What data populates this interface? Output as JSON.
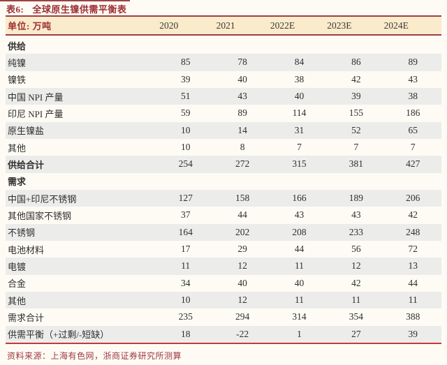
{
  "header": {
    "table_label": "表6:",
    "title": "全球原生镍供需平衡表"
  },
  "table": {
    "unit_label": "单位: 万吨",
    "columns": [
      "2020",
      "2021",
      "2022E",
      "2023E",
      "2024E"
    ],
    "rows": [
      {
        "label": "供给",
        "style": "section",
        "values": [
          "",
          "",
          "",
          "",
          ""
        ]
      },
      {
        "label": "纯镍",
        "style": "normal",
        "values": [
          "85",
          "78",
          "84",
          "86",
          "89"
        ]
      },
      {
        "label": "镍铁",
        "style": "normal",
        "values": [
          "39",
          "40",
          "38",
          "42",
          "43"
        ]
      },
      {
        "label": "中国 NPI 产量",
        "style": "normal",
        "values": [
          "51",
          "43",
          "40",
          "39",
          "38"
        ]
      },
      {
        "label": "印尼 NPI 产量",
        "style": "normal",
        "values": [
          "59",
          "89",
          "114",
          "155",
          "186"
        ]
      },
      {
        "label": "原生镍盐",
        "style": "normal",
        "values": [
          "10",
          "14",
          "31",
          "52",
          "65"
        ]
      },
      {
        "label": "其他",
        "style": "normal",
        "values": [
          "10",
          "8",
          "7",
          "7",
          "7"
        ]
      },
      {
        "label": "供给合计",
        "style": "bold",
        "values": [
          "254",
          "272",
          "315",
          "381",
          "427"
        ]
      },
      {
        "label": "需求",
        "style": "section",
        "values": [
          "",
          "",
          "",
          "",
          ""
        ]
      },
      {
        "label": "中国+印尼不锈钢",
        "style": "normal",
        "values": [
          "127",
          "158",
          "166",
          "189",
          "206"
        ]
      },
      {
        "label": "其他国家不锈钢",
        "style": "normal",
        "values": [
          "37",
          "44",
          "43",
          "43",
          "42"
        ]
      },
      {
        "label": "不锈钢",
        "style": "normal",
        "values": [
          "164",
          "202",
          "208",
          "233",
          "248"
        ]
      },
      {
        "label": "电池材料",
        "style": "normal",
        "values": [
          "17",
          "29",
          "44",
          "56",
          "72"
        ]
      },
      {
        "label": "电镀",
        "style": "normal",
        "values": [
          "11",
          "12",
          "11",
          "12",
          "13"
        ]
      },
      {
        "label": "合金",
        "style": "normal",
        "values": [
          "34",
          "40",
          "40",
          "42",
          "44"
        ]
      },
      {
        "label": "其他",
        "style": "normal",
        "values": [
          "10",
          "12",
          "11",
          "11",
          "11"
        ]
      },
      {
        "label": "需求合计",
        "style": "normal",
        "values": [
          "235",
          "294",
          "314",
          "354",
          "388"
        ]
      },
      {
        "label": "供需平衡（+过剩/-短缺）",
        "style": "normal",
        "values": [
          "18",
          "-22",
          "1",
          "27",
          "39"
        ]
      }
    ]
  },
  "footer": {
    "source": "资料来源：上海有色网，浙商证券研究所测算"
  },
  "colors": {
    "accent_dark_red": "#9C2E35",
    "rule_red": "#9C4044",
    "bottom_rule_red": "#C23C35",
    "header_band_cream": "#FAEBCB",
    "row_stripe_gray": "#ECECEB",
    "body_text": "#2E2E2E"
  }
}
